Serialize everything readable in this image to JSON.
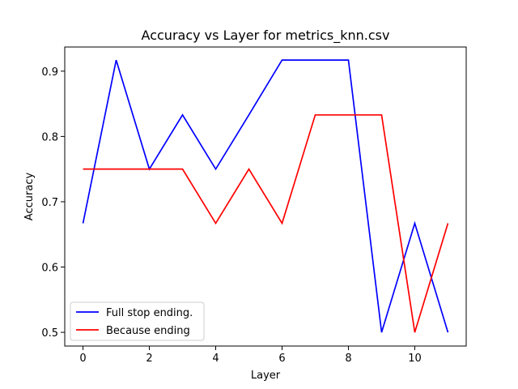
{
  "chart_data": {
    "type": "line",
    "title": "Accuracy vs Layer for metrics_knn.csv",
    "xlabel": "Layer",
    "ylabel": "Accuracy",
    "x": [
      0,
      1,
      2,
      3,
      4,
      5,
      6,
      7,
      8,
      9,
      10,
      11
    ],
    "xlim": [
      -0.55,
      11.55
    ],
    "ylim": [
      0.479,
      0.937
    ],
    "xticks": [
      0,
      2,
      4,
      6,
      8,
      10
    ],
    "yticks": [
      0.5,
      0.6,
      0.7,
      0.8,
      0.9
    ],
    "grid": false,
    "legend_position": "lower-left",
    "series": [
      {
        "name": "Full stop ending.",
        "color": "#0000ff",
        "values": [
          0.667,
          0.917,
          0.75,
          0.833,
          0.75,
          0.833,
          0.917,
          0.917,
          0.917,
          0.5,
          0.667,
          0.5
        ]
      },
      {
        "name": "Because ending",
        "color": "#ff0000",
        "values": [
          0.75,
          0.75,
          0.75,
          0.75,
          0.667,
          0.75,
          0.667,
          0.833,
          0.833,
          0.833,
          0.5,
          0.667
        ]
      }
    ]
  }
}
